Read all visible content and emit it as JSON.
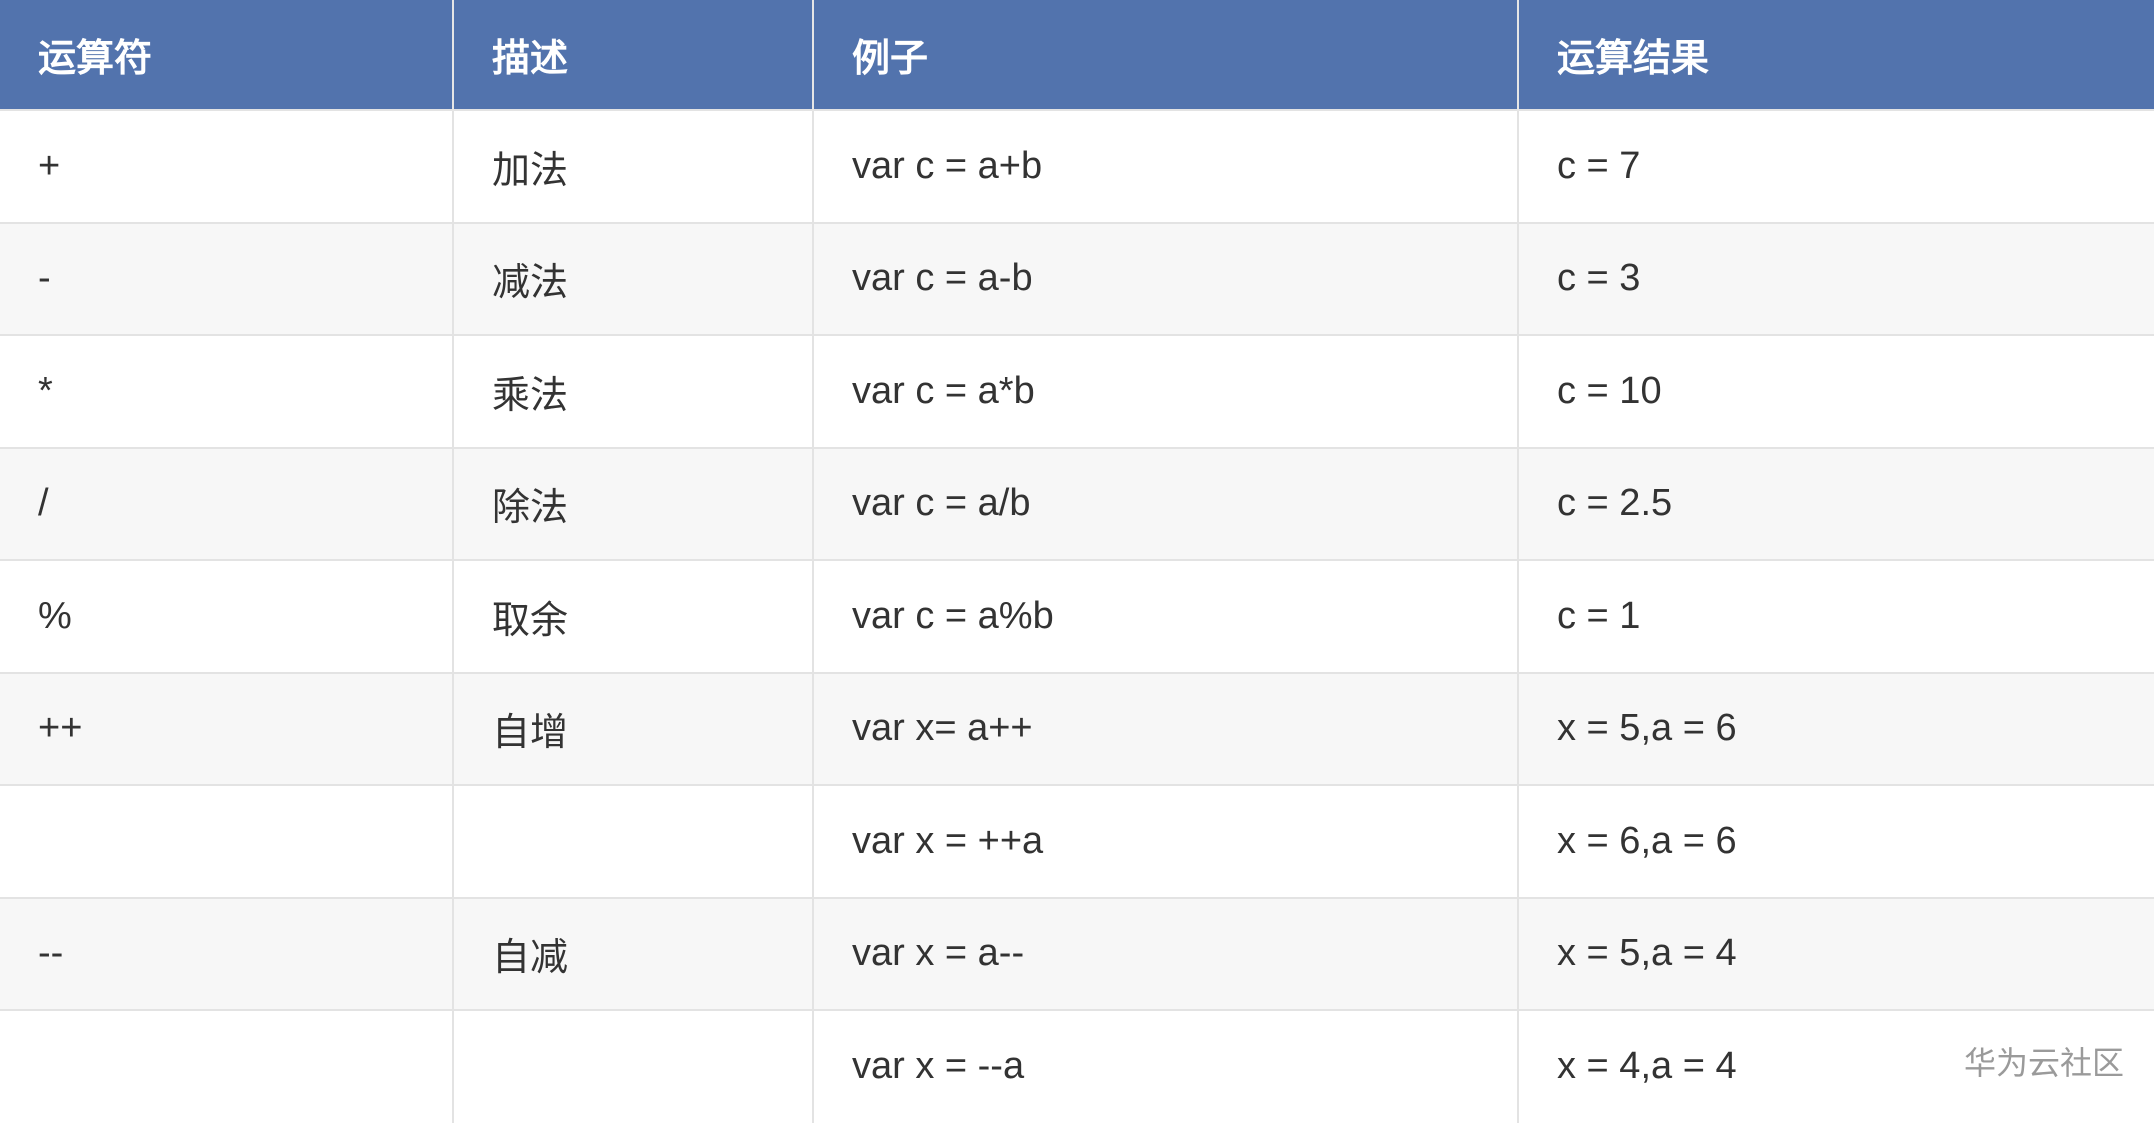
{
  "table": {
    "headers": [
      "运算符",
      "描述",
      "例子",
      "运算结果"
    ],
    "rows": [
      {
        "operator": "+",
        "description": "加法",
        "example": "var c = a+b",
        "result": "c = 7"
      },
      {
        "operator": "-",
        "description": "减法",
        "example": "var c = a-b",
        "result": "c = 3"
      },
      {
        "operator": "*",
        "description": "乘法",
        "example": "var c = a*b",
        "result": "c = 10"
      },
      {
        "operator": "/",
        "description": "除法",
        "example": "var c = a/b",
        "result": "c = 2.5"
      },
      {
        "operator": "%",
        "description": "取余",
        "example": "var c = a%b",
        "result": "c = 1"
      },
      {
        "operator": "++",
        "description": "自增",
        "example": "var x= a++",
        "result": "x = 5,a = 6"
      },
      {
        "operator": "",
        "description": "",
        "example": "var x = ++a",
        "result": "x = 6,a = 6"
      },
      {
        "operator": "--",
        "description": "自减",
        "example": "var x = a--",
        "result": "x = 5,a = 4"
      },
      {
        "operator": "",
        "description": "",
        "example": "var x = --a",
        "result": "x = 4,a = 4"
      }
    ]
  },
  "colors": {
    "header_bg": "#5273ad",
    "alt_row_bg": "#f7f7f7"
  },
  "watermark": "华为云社区"
}
